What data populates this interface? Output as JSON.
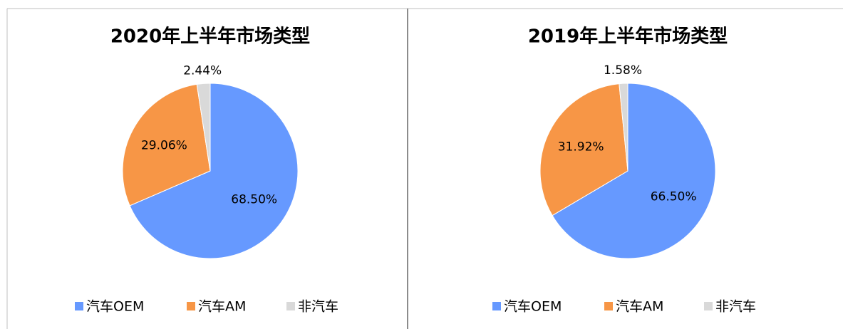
{
  "chart_data": [
    {
      "type": "pie",
      "title": "2020年上半年市场类型",
      "categories": [
        "汽车OEM",
        "汽车AM",
        "非汽车"
      ],
      "values": [
        68.5,
        29.06,
        2.44
      ],
      "value_labels": [
        "68.50%",
        "29.06%",
        "2.44%"
      ],
      "colors": [
        "#6699ff",
        "#f79646",
        "#d9d9d9"
      ],
      "legend": "bottom"
    },
    {
      "type": "pie",
      "title": "2019年上半年市场类型",
      "categories": [
        "汽车OEM",
        "汽车AM",
        "非汽车"
      ],
      "values": [
        66.5,
        31.92,
        1.58
      ],
      "value_labels": [
        "66.50%",
        "31.92%",
        "1.58%"
      ],
      "colors": [
        "#6699ff",
        "#f79646",
        "#d9d9d9"
      ],
      "legend": "bottom"
    }
  ]
}
